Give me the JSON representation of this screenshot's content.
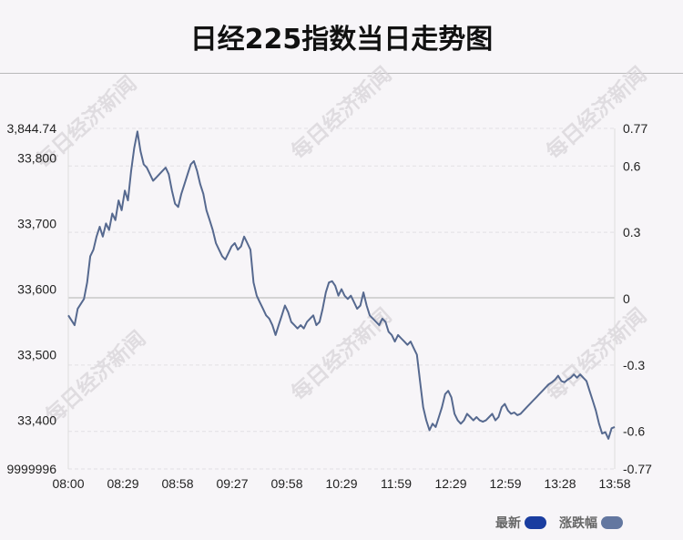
{
  "title": "日经225指数当日走势图",
  "watermark": "每日经济新闻",
  "colors": {
    "line": "#56698f",
    "legend_latest": "#1a3da0",
    "legend_change": "#6377a0",
    "zero_line": "#c8c8c8",
    "grid": "#e2e0e4"
  },
  "legend": [
    {
      "label": "最新",
      "color": "#1a3da0"
    },
    {
      "label": "涨跌幅",
      "color": "#6377a0"
    }
  ],
  "chart_data": {
    "type": "line",
    "title": "日经225指数当日走势图",
    "x_ticks": [
      "08:00",
      "08:29",
      "08:58",
      "09:27",
      "09:58",
      "10:29",
      "11:59",
      "12:29",
      "12:59",
      "13:28",
      "13:58"
    ],
    "y_left": {
      "range": [
        33325.9999996,
        33844.74
      ],
      "top_label": "3,844.74",
      "bottom_label": "9999996",
      "ticks": [
        {
          "value": 33800,
          "label": "33,800"
        },
        {
          "value": 33700,
          "label": "33,700"
        },
        {
          "value": 33600,
          "label": "33,600"
        },
        {
          "value": 33500,
          "label": "33,500"
        },
        {
          "value": 33400,
          "label": "33,400"
        }
      ]
    },
    "y_right": {
      "range": [
        -0.77,
        0.77
      ],
      "ticks": [
        {
          "value": 0.77,
          "label": "0.77"
        },
        {
          "value": 0.6,
          "label": "0.6"
        },
        {
          "value": 0.3,
          "label": "0.3"
        },
        {
          "value": 0,
          "label": "0"
        },
        {
          "value": -0.3,
          "label": "-0.3"
        },
        {
          "value": -0.6,
          "label": "-0.6"
        },
        {
          "value": -0.77,
          "label": "-0.77"
        }
      ]
    },
    "baseline": 33585,
    "series": [
      {
        "values": [
          [
            0,
            33560
          ],
          [
            2,
            33545
          ],
          [
            3,
            33570
          ],
          [
            5,
            33585
          ],
          [
            6,
            33610
          ],
          [
            7,
            33650
          ],
          [
            8,
            33660
          ],
          [
            9,
            33680
          ],
          [
            10,
            33695
          ],
          [
            11,
            33680
          ],
          [
            12,
            33700
          ],
          [
            13,
            33690
          ],
          [
            14,
            33715
          ],
          [
            15,
            33705
          ],
          [
            16,
            33735
          ],
          [
            17,
            33720
          ],
          [
            18,
            33750
          ],
          [
            19,
            33735
          ],
          [
            20,
            33780
          ],
          [
            21,
            33815
          ],
          [
            22,
            33840
          ],
          [
            23,
            33810
          ],
          [
            24,
            33790
          ],
          [
            25,
            33785
          ],
          [
            26,
            33775
          ],
          [
            27,
            33765
          ],
          [
            28,
            33770
          ],
          [
            29,
            33775
          ],
          [
            30,
            33780
          ],
          [
            31,
            33785
          ],
          [
            32,
            33775
          ],
          [
            33,
            33750
          ],
          [
            34,
            33730
          ],
          [
            35,
            33725
          ],
          [
            36,
            33745
          ],
          [
            37,
            33760
          ],
          [
            38,
            33775
          ],
          [
            39,
            33790
          ],
          [
            40,
            33795
          ],
          [
            41,
            33780
          ],
          [
            42,
            33760
          ],
          [
            43,
            33745
          ],
          [
            44,
            33720
          ],
          [
            45,
            33705
          ],
          [
            46,
            33690
          ],
          [
            47,
            33670
          ],
          [
            48,
            33660
          ],
          [
            49,
            33650
          ],
          [
            50,
            33645
          ],
          [
            51,
            33655
          ],
          [
            52,
            33665
          ],
          [
            53,
            33670
          ],
          [
            54,
            33660
          ],
          [
            55,
            33665
          ],
          [
            56,
            33680
          ],
          [
            57,
            33670
          ],
          [
            58,
            33660
          ],
          [
            59,
            33610
          ],
          [
            60,
            33590
          ],
          [
            61,
            33580
          ],
          [
            62,
            33570
          ],
          [
            63,
            33560
          ],
          [
            64,
            33555
          ],
          [
            65,
            33545
          ],
          [
            66,
            33530
          ],
          [
            67,
            33545
          ],
          [
            68,
            33560
          ],
          [
            69,
            33575
          ],
          [
            70,
            33565
          ],
          [
            71,
            33550
          ],
          [
            72,
            33545
          ],
          [
            73,
            33540
          ],
          [
            74,
            33545
          ],
          [
            75,
            33540
          ],
          [
            76,
            33550
          ],
          [
            77,
            33555
          ],
          [
            78,
            33560
          ],
          [
            79,
            33545
          ],
          [
            80,
            33550
          ],
          [
            81,
            33570
          ],
          [
            82,
            33595
          ],
          [
            83,
            33610
          ],
          [
            84,
            33612
          ],
          [
            85,
            33605
          ],
          [
            86,
            33590
          ],
          [
            87,
            33600
          ],
          [
            88,
            33590
          ],
          [
            89,
            33585
          ],
          [
            90,
            33590
          ],
          [
            91,
            33580
          ],
          [
            92,
            33570
          ],
          [
            93,
            33575
          ],
          [
            94,
            33595
          ],
          [
            95,
            33575
          ],
          [
            96,
            33560
          ],
          [
            97,
            33555
          ],
          [
            98,
            33550
          ],
          [
            99,
            33545
          ],
          [
            100,
            33555
          ],
          [
            101,
            33550
          ],
          [
            102,
            33535
          ],
          [
            103,
            33530
          ],
          [
            104,
            33520
          ],
          [
            105,
            33530
          ],
          [
            106,
            33525
          ],
          [
            107,
            33520
          ],
          [
            108,
            33515
          ],
          [
            109,
            33520
          ],
          [
            110,
            33510
          ],
          [
            111,
            33500
          ],
          [
            112,
            33460
          ],
          [
            113,
            33420
          ],
          [
            114,
            33400
          ],
          [
            115,
            33385
          ],
          [
            116,
            33395
          ],
          [
            117,
            33390
          ],
          [
            118,
            33405
          ],
          [
            119,
            33420
          ],
          [
            120,
            33440
          ],
          [
            121,
            33445
          ],
          [
            122,
            33435
          ],
          [
            123,
            33410
          ],
          [
            124,
            33400
          ],
          [
            125,
            33395
          ],
          [
            126,
            33400
          ],
          [
            127,
            33410
          ],
          [
            128,
            33405
          ],
          [
            129,
            33400
          ],
          [
            130,
            33405
          ],
          [
            131,
            33400
          ],
          [
            132,
            33398
          ],
          [
            133,
            33400
          ],
          [
            134,
            33405
          ],
          [
            135,
            33410
          ],
          [
            136,
            33400
          ],
          [
            137,
            33405
          ],
          [
            138,
            33420
          ],
          [
            139,
            33425
          ],
          [
            140,
            33415
          ],
          [
            141,
            33410
          ],
          [
            142,
            33412
          ],
          [
            143,
            33408
          ],
          [
            144,
            33410
          ],
          [
            145,
            33415
          ],
          [
            146,
            33420
          ],
          [
            147,
            33425
          ],
          [
            148,
            33430
          ],
          [
            149,
            33435
          ],
          [
            150,
            33440
          ],
          [
            151,
            33445
          ],
          [
            152,
            33450
          ],
          [
            153,
            33455
          ],
          [
            154,
            33458
          ],
          [
            155,
            33462
          ],
          [
            156,
            33468
          ],
          [
            157,
            33460
          ],
          [
            158,
            33458
          ],
          [
            159,
            33462
          ],
          [
            160,
            33465
          ],
          [
            161,
            33470
          ],
          [
            162,
            33465
          ],
          [
            163,
            33470
          ],
          [
            164,
            33465
          ],
          [
            165,
            33460
          ],
          [
            166,
            33445
          ],
          [
            167,
            33430
          ],
          [
            168,
            33415
          ],
          [
            169,
            33395
          ],
          [
            170,
            33380
          ],
          [
            171,
            33382
          ],
          [
            172,
            33372
          ],
          [
            173,
            33388
          ],
          [
            174,
            33390
          ]
        ]
      }
    ]
  }
}
